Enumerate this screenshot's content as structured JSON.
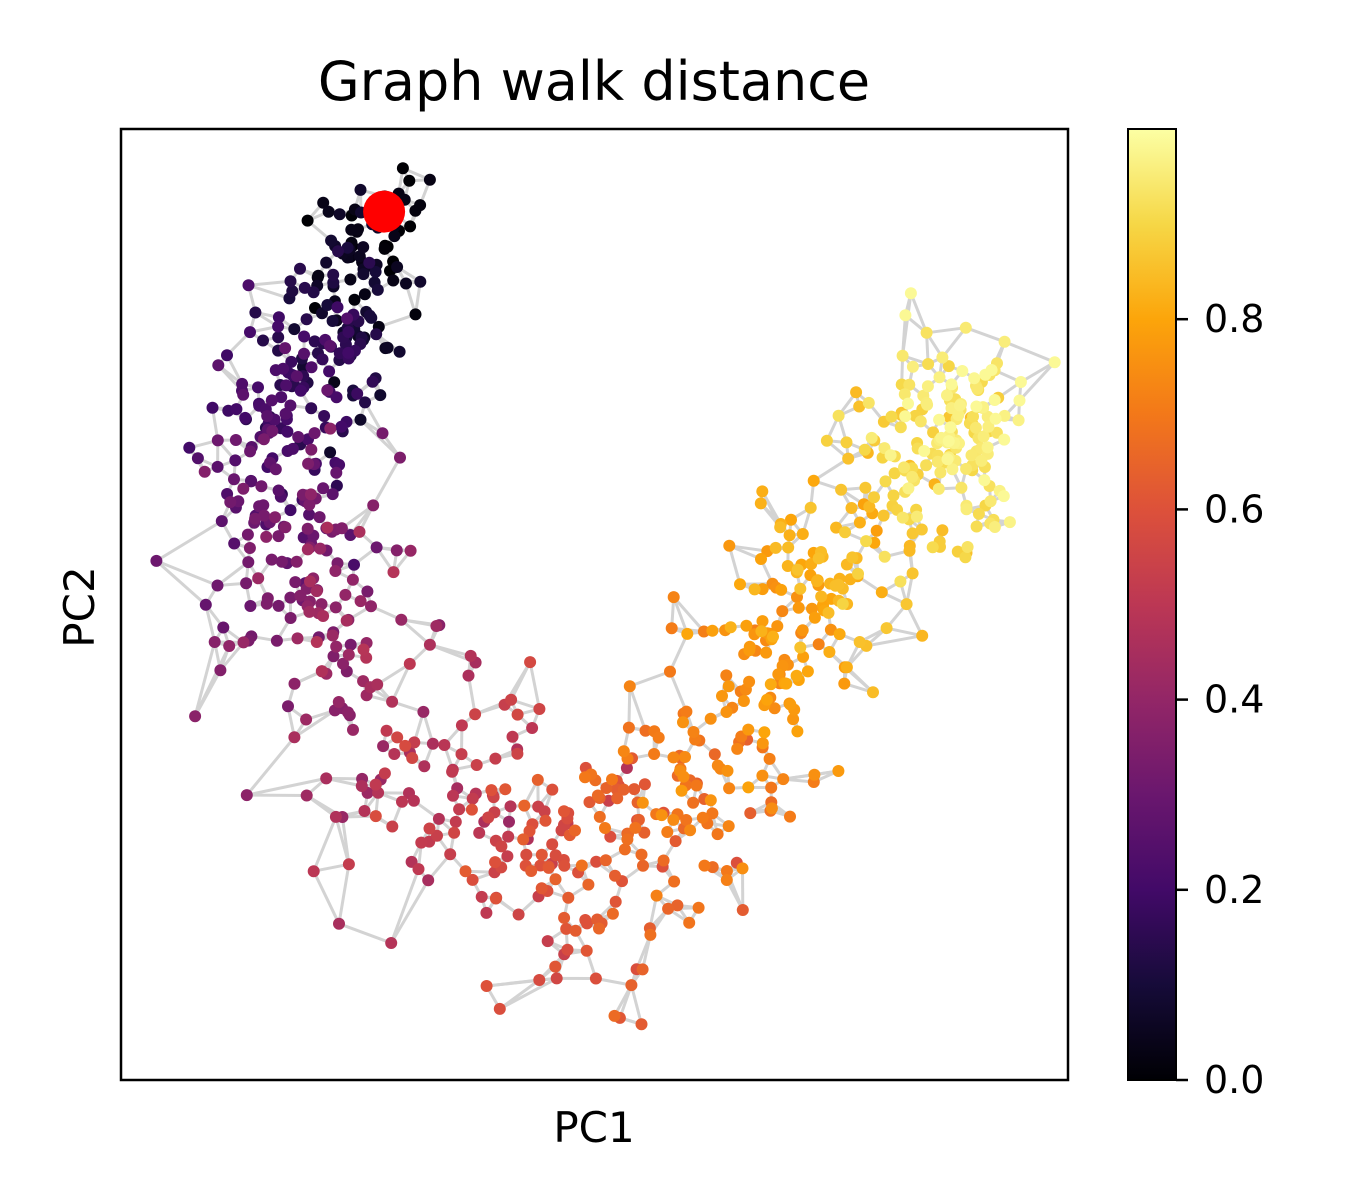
{
  "chart_data": {
    "type": "scatter",
    "title": "Graph walk distance",
    "xlabel": "PC1",
    "ylabel": "PC2",
    "x_ticks_visible": false,
    "y_ticks_visible": false,
    "xlim": [
      -2.8,
      2.6
    ],
    "ylim": [
      -2.3,
      1.5
    ],
    "grid": false,
    "colormap": "inferno",
    "point_color": "graph walk distance from root (0–1, inferno)",
    "edge_color": "#d3d3d3",
    "root_point": {
      "x": -1.3,
      "y": 1.17,
      "color": "#ff0000"
    },
    "colorbar": {
      "range": [
        0.0,
        1.0
      ],
      "ticks": [
        0.0,
        0.2,
        0.4,
        0.6,
        0.8
      ],
      "tick_labels": [
        "0.0",
        "0.2",
        "0.4",
        "0.6",
        "0.8"
      ]
    },
    "n_points": 1000,
    "series": [
      {
        "type": "scatter",
        "points_description": "cells arranged along a U-shaped arc from the upper-left (root, distance 0) down through the bottom centre (~0.6) up to the upper-right (~0.97)",
        "sample_points": [
          {
            "x": -1.3,
            "y": 1.12,
            "value": 0.0
          },
          {
            "x": -1.6,
            "y": 0.7,
            "value": 0.12
          },
          {
            "x": -1.9,
            "y": 0.2,
            "value": 0.25
          },
          {
            "x": -1.8,
            "y": -0.4,
            "value": 0.37
          },
          {
            "x": -1.0,
            "y": -1.1,
            "value": 0.5
          },
          {
            "x": -0.1,
            "y": -1.5,
            "value": 0.62
          },
          {
            "x": 0.6,
            "y": -1.0,
            "value": 0.72
          },
          {
            "x": 1.2,
            "y": -0.3,
            "value": 0.82
          },
          {
            "x": 1.9,
            "y": 0.2,
            "value": 0.92
          },
          {
            "x": 2.1,
            "y": 0.4,
            "value": 0.98
          }
        ]
      }
    ]
  }
}
